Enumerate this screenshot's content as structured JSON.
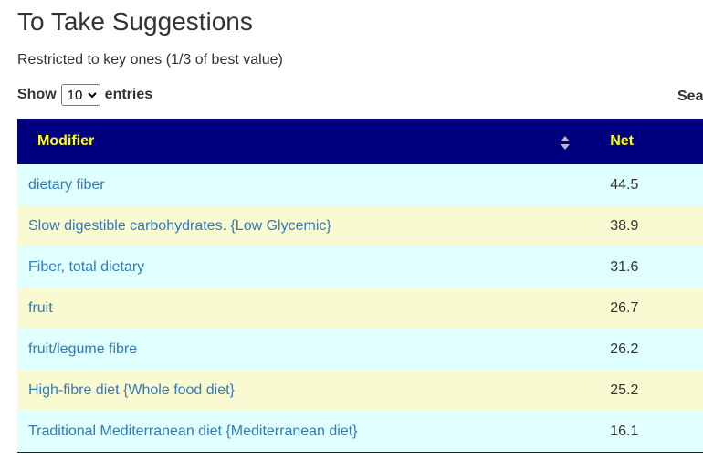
{
  "header": {
    "title": "To Take Suggestions",
    "subtitle": "Restricted to key ones (1/3 of best value)"
  },
  "controls": {
    "show": "Show",
    "page_size": "10",
    "entries": "entries",
    "search": "Sea"
  },
  "table": {
    "columns": [
      "Modifier",
      "Net"
    ],
    "rows": [
      [
        "dietary fiber",
        44.5
      ],
      [
        "Slow digestible carbohydrates. {Low Glycemic}",
        38.9
      ],
      [
        "Fiber, total dietary",
        31.6
      ],
      [
        "fruit",
        26.7
      ],
      [
        "fruit/legume fibre",
        26.2
      ],
      [
        "High-fibre diet {Whole food diet}",
        25.2
      ],
      [
        "Traditional Mediterranean diet {Mediterranean diet}",
        16.1
      ]
    ]
  }
}
